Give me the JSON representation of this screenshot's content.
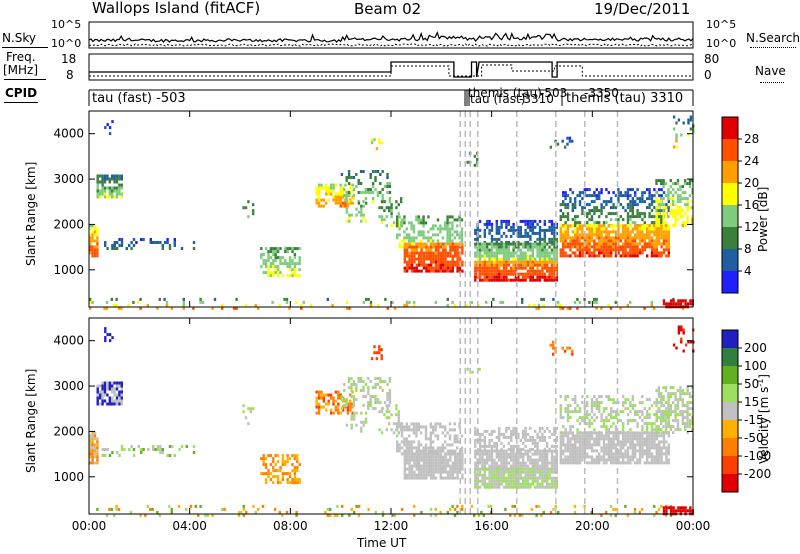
{
  "header": {
    "site": "Wallops Island (fitACF)",
    "beam": "Beam 02",
    "date": "19/Dec/2011"
  },
  "sky_panel": {
    "left_label": "N.Sky",
    "right_label": "N.Search",
    "left_ticks": [
      "10^5",
      "10^0"
    ],
    "right_ticks": [
      "10^5",
      "10^0"
    ]
  },
  "freq_panel": {
    "left_label_1": "Freq.",
    "left_label_2": "[MHz]",
    "right_label": "Nave",
    "left_ticks": [
      "18",
      "8"
    ],
    "right_ticks": [
      "80",
      "0"
    ]
  },
  "cpid": {
    "label": "CPID",
    "first_entry": "tau (fast) -503",
    "cluster_entries": [
      "themis (tau)",
      "tau (fast)",
      "-503",
      "-3310",
      "-3350"
    ],
    "last_entry": "themis (tau)  3310"
  },
  "chart_data": [
    {
      "type": "heatmap",
      "title": "Power",
      "ylabel": "Slant Range [km]",
      "ylim": [
        180,
        4500
      ],
      "yticks": [
        "1000",
        "2000",
        "3000",
        "4000"
      ],
      "xticks": [
        "00:00",
        "04:00",
        "08:00",
        "12:00",
        "16:00",
        "20:00",
        "00:00"
      ],
      "colorbar_label": "Power [dB]",
      "colorbar_ticks": [
        "28",
        "24",
        "20",
        "16",
        "12",
        "8",
        "4"
      ],
      "colors": [
        "#2020ff",
        "#1f5f9f",
        "#3a7f3a",
        "#7fcc7f",
        "#ffff00",
        "#ff9f00",
        "#ff4f00",
        "#e00000"
      ]
    },
    {
      "type": "heatmap",
      "title": "Velocity",
      "ylabel": "Slant Range [km]",
      "ylim": [
        180,
        4500
      ],
      "yticks": [
        "1000",
        "2000",
        "3000",
        "4000"
      ],
      "xticks": [
        "00:00",
        "04:00",
        "08:00",
        "12:00",
        "16:00",
        "20:00",
        "00:00"
      ],
      "xlabel": "Time UT",
      "colorbar_label": "Velocity [m s",
      "colorbar_sup": "-1",
      "colorbar_close": "]",
      "colorbar_ticks": [
        "200",
        "100",
        "50",
        "15",
        "-15",
        "-50",
        "-100",
        "-200"
      ],
      "colors": [
        "#2020c0",
        "#2f7f3f",
        "#60b020",
        "#9fdf60",
        "#c0c0c0",
        "#ffb000",
        "#ff7f00",
        "#ff3f00",
        "#e00000"
      ]
    }
  ]
}
